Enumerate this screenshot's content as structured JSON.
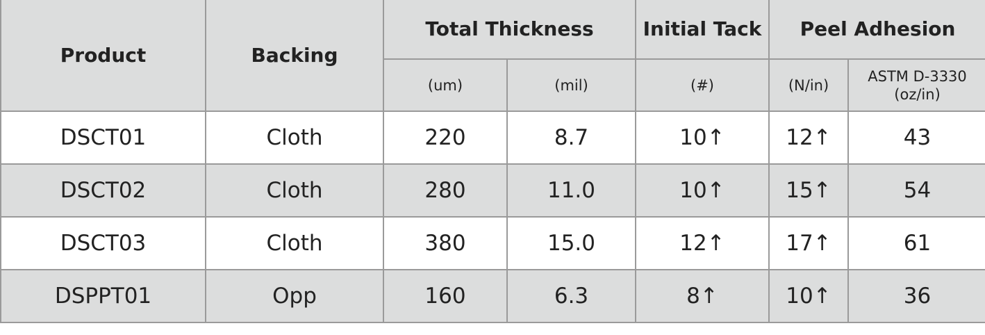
{
  "header": {
    "product": "Product",
    "backing": "Backing",
    "total_thickness": "Total Thickness",
    "initial_tack": "Initial Tack",
    "peel_adhesion": "Peel Adhesion"
  },
  "subheader": [
    "(um)",
    "(mil)",
    "(#)",
    "(N/in)",
    "ASTM D-3330 (oz/in)"
  ],
  "rows": [
    [
      "DSCT01",
      "Cloth",
      "220",
      "8.7",
      "10↑",
      "12↑",
      "43"
    ],
    [
      "DSCT02",
      "Cloth",
      "280",
      "11.0",
      "10↑",
      "15↑",
      "54"
    ],
    [
      "DSCT03",
      "Cloth",
      "380",
      "15.0",
      "12↑",
      "17↑",
      "61"
    ],
    [
      "DSPPT01",
      "Opp",
      "160",
      "6.3",
      "8↑",
      "10↑",
      "36"
    ]
  ]
}
